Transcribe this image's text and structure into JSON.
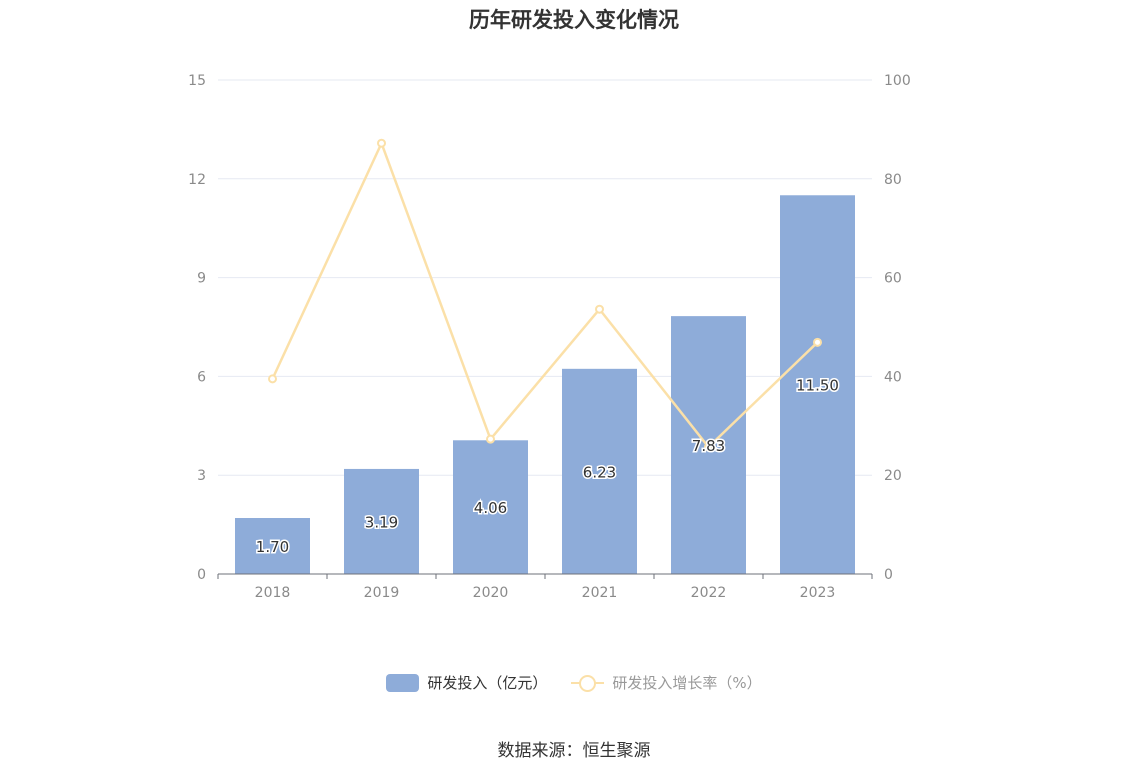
{
  "chart_data": {
    "type": "bar",
    "title": "历年研发投入变化情况",
    "categories": [
      "2018",
      "2019",
      "2020",
      "2021",
      "2022",
      "2023"
    ],
    "series": [
      {
        "name": "研发投入（亿元）",
        "type": "bar",
        "axis": "left",
        "values": [
          1.7,
          3.19,
          4.06,
          6.23,
          7.83,
          11.5
        ],
        "labels": [
          "1.70",
          "3.19",
          "4.06",
          "6.23",
          "7.83",
          "11.50"
        ]
      },
      {
        "name": "研发投入增长率（%）",
        "type": "line",
        "axis": "right",
        "values": [
          39.5,
          87.2,
          27.3,
          53.6,
          25.7,
          46.9
        ]
      }
    ],
    "y_left": {
      "ylim": [
        0,
        15
      ],
      "ticks": [
        "0",
        "3",
        "6",
        "9",
        "12",
        "15"
      ]
    },
    "y_right": {
      "ylim": [
        0,
        100
      ],
      "ticks": [
        "0",
        "20",
        "40",
        "60",
        "80",
        "100"
      ]
    },
    "grid": true,
    "legend": "bottom-center",
    "colors": {
      "bar": "#8eacd9",
      "line": "#fbe0a8",
      "grid": "#e6e9f2",
      "axis": "#6e7079"
    }
  },
  "source": "数据来源：恒生聚源"
}
